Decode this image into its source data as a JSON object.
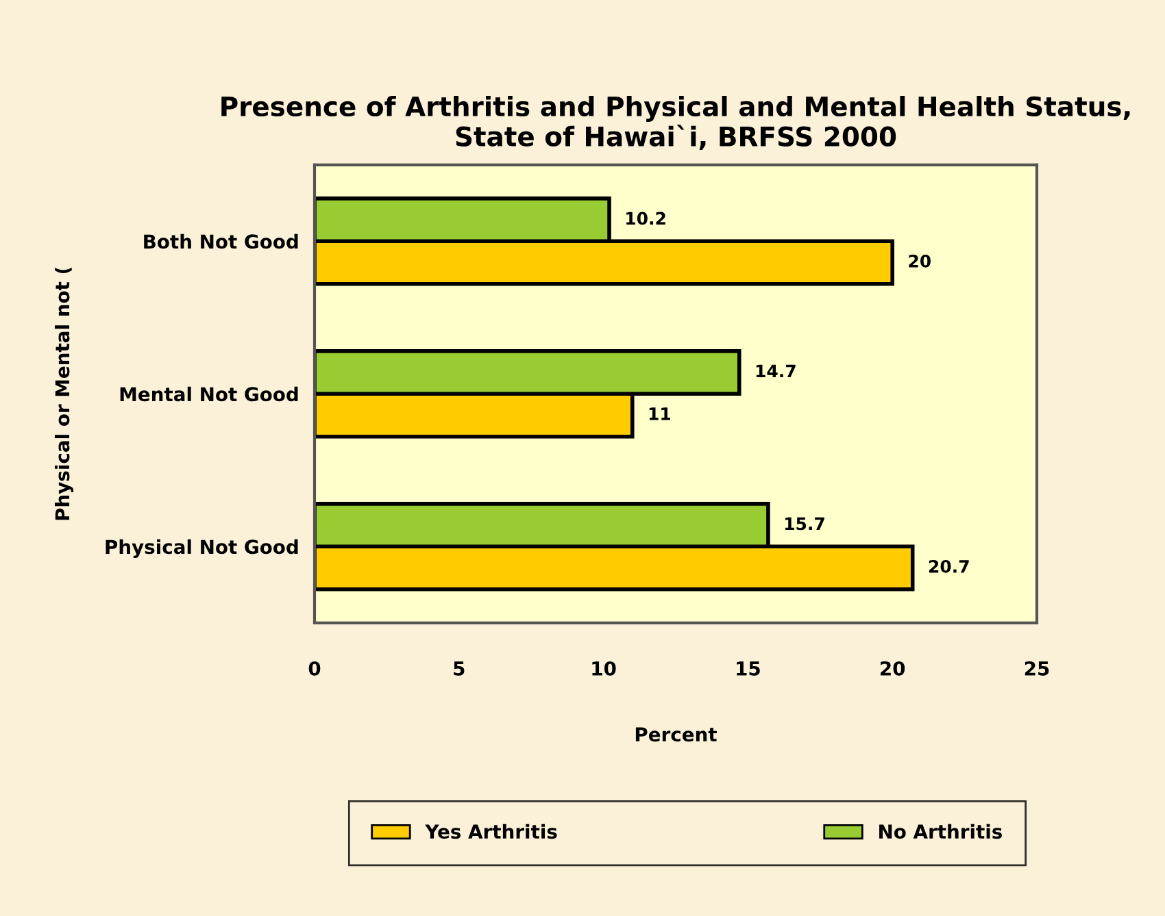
{
  "chart_data": {
    "type": "bar",
    "orientation": "horizontal",
    "title": "Presence of Arthritis and Physical and Mental Health Status, State of Hawai`i, BRFSS 2000",
    "xlabel": "Percent",
    "ylabel": "Physical or Mental not (",
    "categories": [
      "Both Not Good",
      "Mental Not Good",
      "Physical Not Good"
    ],
    "series": [
      {
        "name": "Yes Arthritis",
        "color": "#ffcc00",
        "values": [
          20,
          11,
          20.7
        ]
      },
      {
        "name": "No Arthritis",
        "color": "#99cc33",
        "values": [
          10.2,
          14.7,
          15.7
        ]
      }
    ],
    "xlim": [
      0,
      25
    ],
    "xticks": [
      0,
      5,
      10,
      15,
      20,
      25
    ],
    "data_labels": true,
    "grid": false,
    "legend": "bottom"
  }
}
